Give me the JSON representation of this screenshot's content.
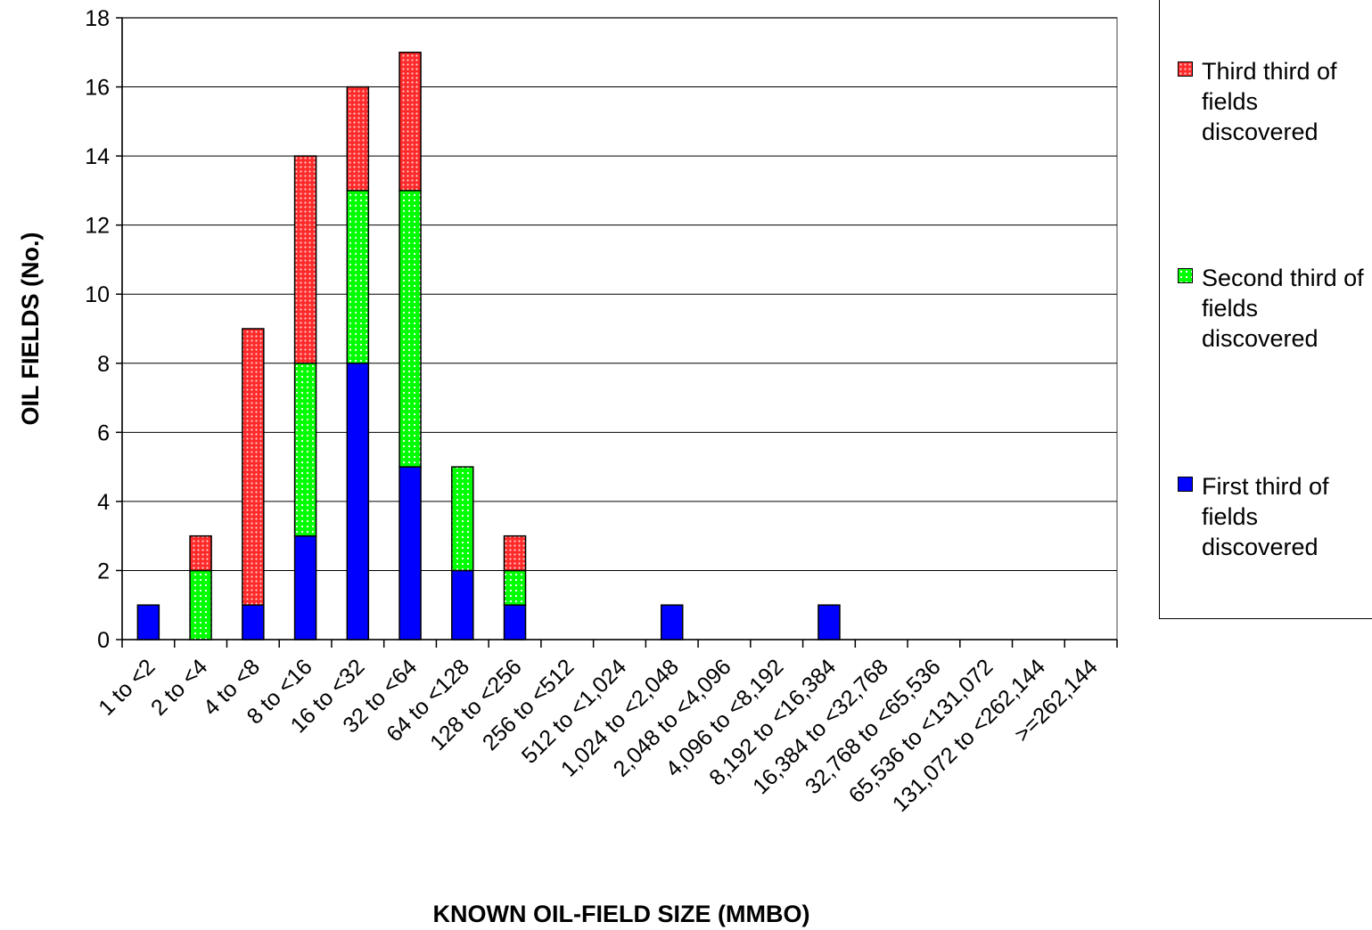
{
  "chart_data": {
    "type": "bar",
    "stacked": true,
    "title": "",
    "xlabel": "KNOWN OIL-FIELD SIZE (MMBO)",
    "ylabel": "OIL FIELDS (No.)",
    "ylim": [
      0,
      18
    ],
    "yticks": [
      0,
      2,
      4,
      6,
      8,
      10,
      12,
      14,
      16,
      18
    ],
    "grid": "horizontal",
    "legend_position": "right",
    "categories": [
      "1 to <2",
      "2 to <4",
      "4 to <8",
      "8 to <16",
      "16 to <32",
      "32 to <64",
      "64 to <128",
      "128 to <256",
      "256 to <512",
      "512 to <1,024",
      "1,024 to <2,048",
      "2,048 to <4,096",
      "4,096 to <8,192",
      "8,192 to <16,384",
      "16,384 to <32,768",
      "32,768 to <65,536",
      "65,536 to <131,072",
      "131,072 to <262,144",
      ">=262,144"
    ],
    "series": [
      {
        "name": "First third of fields discovered",
        "color": "#0000ff",
        "values": [
          1,
          0,
          1,
          3,
          8,
          5,
          2,
          1,
          0,
          0,
          1,
          0,
          0,
          1,
          0,
          0,
          0,
          0,
          0
        ]
      },
      {
        "name": "Second third of fields discovered",
        "color": "#00ff00",
        "values": [
          0,
          2,
          0,
          5,
          5,
          8,
          3,
          1,
          0,
          0,
          0,
          0,
          0,
          0,
          0,
          0,
          0,
          0,
          0
        ]
      },
      {
        "name": "Third third of fields discovered",
        "color": "#ff0000",
        "values": [
          0,
          1,
          8,
          6,
          3,
          4,
          0,
          1,
          0,
          0,
          0,
          0,
          0,
          0,
          0,
          0,
          0,
          0,
          0
        ]
      }
    ]
  }
}
